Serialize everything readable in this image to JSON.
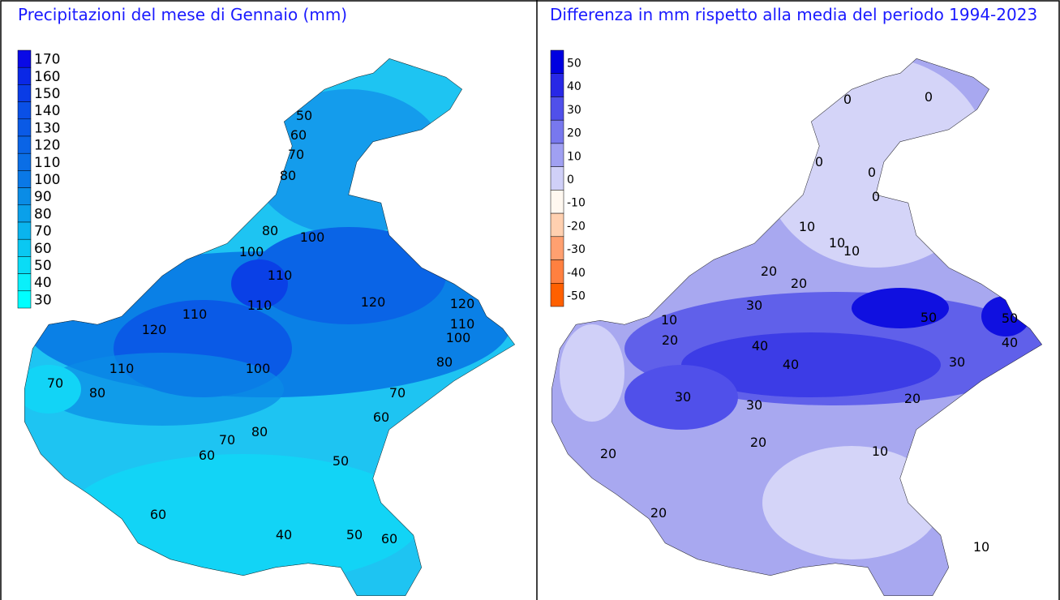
{
  "panels": [
    {
      "title": "Precipitazioni del mese di Gennaio (mm)",
      "legend": {
        "labels": [
          170,
          160,
          150,
          140,
          130,
          120,
          110,
          100,
          90,
          80,
          70,
          60,
          50,
          40,
          30
        ],
        "colors": [
          "#0a0ae6",
          "#0a28e6",
          "#0a3ce6",
          "#0a50e6",
          "#0a5ae6",
          "#0a64e6",
          "#0a6ee6",
          "#0a78e6",
          "#0a8ce6",
          "#0aa0ea",
          "#0ab4ee",
          "#0ac8f2",
          "#0adcf6",
          "#0af0fa",
          "#00ffff"
        ]
      },
      "contour_labels": [
        50,
        60,
        70,
        80,
        80,
        100,
        100,
        110,
        110,
        120,
        110,
        120,
        120,
        110,
        100,
        80,
        110,
        100,
        70,
        80,
        70,
        60,
        80,
        70,
        60,
        50,
        60,
        40,
        50,
        60
      ]
    },
    {
      "title": "Differenza in mm rispetto alla media del periodo 1994-2023",
      "legend": {
        "labels": [
          50,
          40,
          30,
          20,
          10,
          0,
          -10,
          -20,
          -30,
          -40,
          -50
        ],
        "colors": [
          "#0000e0",
          "#2828e6",
          "#5050ea",
          "#7878ee",
          "#a0a0f2",
          "#d0d0f8",
          "#fff8f0",
          "#ffd0b0",
          "#ffa070",
          "#ff8040",
          "#ff6000"
        ]
      },
      "contour_labels": [
        0,
        0,
        0,
        0,
        0,
        10,
        10,
        10,
        20,
        20,
        30,
        10,
        20,
        40,
        50,
        50,
        40,
        40,
        30,
        30,
        30,
        20,
        20,
        10,
        20,
        20,
        10
      ]
    }
  ]
}
